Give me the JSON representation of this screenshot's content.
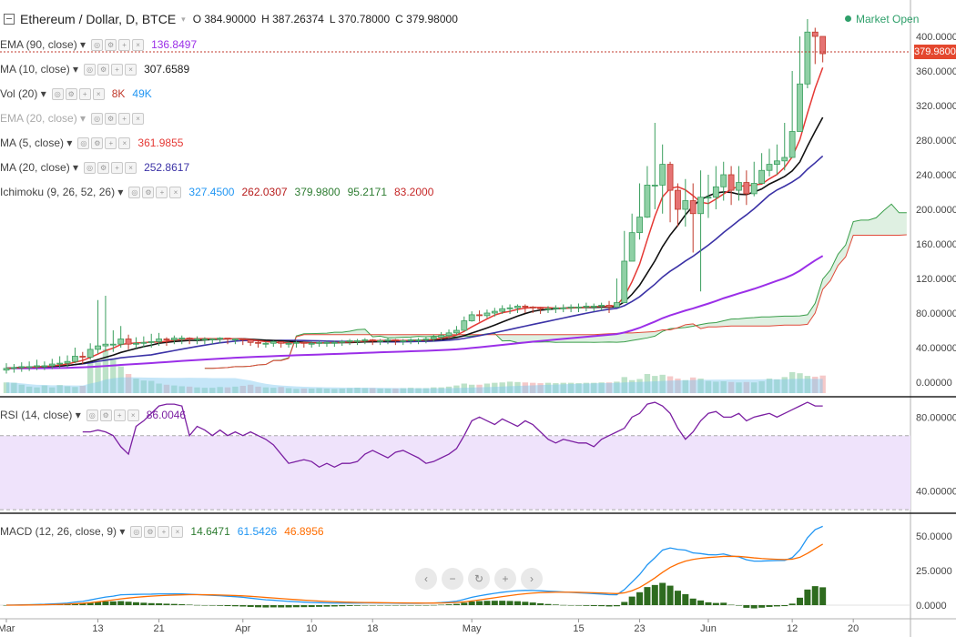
{
  "header": {
    "title": "Ethereum / Dollar, D, BTCE",
    "ohlc": [
      {
        "k": "O",
        "v": "384.90000"
      },
      {
        "k": "H",
        "v": "387.26374"
      },
      {
        "k": "L",
        "v": "370.78000"
      },
      {
        "k": "C",
        "v": "379.98000"
      }
    ],
    "market_status": "Market Open",
    "last_price": "379.98000"
  },
  "legend": [
    {
      "name": "EMA (90, close)",
      "values": [
        {
          "v": "136.8497",
          "color": "#9b2fe8"
        }
      ]
    },
    {
      "name": "MA (10, close)",
      "values": [
        {
          "v": "307.6589",
          "color": "#222222"
        }
      ]
    },
    {
      "name": "Vol (20)",
      "values": [
        {
          "v": "8K",
          "color": "#c0392b"
        },
        {
          "v": "49K",
          "color": "#2196f3"
        }
      ]
    },
    {
      "name": "EMA (20, close)",
      "values": [],
      "hidden": true
    },
    {
      "name": "MA (5, close)",
      "values": [
        {
          "v": "361.9855",
          "color": "#e53935"
        }
      ]
    },
    {
      "name": "MA (20, close)",
      "values": [
        {
          "v": "252.8617",
          "color": "#3b32a6"
        }
      ]
    },
    {
      "name": "Ichimoku (9, 26, 52, 26)",
      "values": [
        {
          "v": "327.4500",
          "color": "#2196f3"
        },
        {
          "v": "262.0307",
          "color": "#b71c1c"
        },
        {
          "v": "379.9800",
          "color": "#2e7d32"
        },
        {
          "v": "95.2171",
          "color": "#2e7d32"
        },
        {
          "v": "83.2000",
          "color": "#c62828"
        }
      ]
    }
  ],
  "rsi_legend": {
    "name": "RSI (14, close)",
    "value": "86.0046",
    "color": "#7b1fa2"
  },
  "macd_legend": {
    "name": "MACD (12, 26, close, 9)",
    "values": [
      {
        "v": "14.6471",
        "color": "#2e7d32"
      },
      {
        "v": "61.5426",
        "color": "#2196f3"
      },
      {
        "v": "46.8956",
        "color": "#ff6d00"
      }
    ]
  },
  "nav_icons": [
    "chevron-left",
    "zoom-out",
    "reset",
    "zoom-in",
    "chevron-right"
  ],
  "chart_data": {
    "type": "candlestick",
    "price_axis_ticks": [
      "400.00000",
      "360.00000",
      "320.00000",
      "280.00000",
      "240.00000",
      "200.00000",
      "160.00000",
      "120.00000",
      "80.00000",
      "40.00000",
      "0.00000"
    ],
    "rsi_axis_ticks": [
      "80.00000",
      "40.00000"
    ],
    "macd_axis_ticks": [
      "50.0000",
      "25.0000",
      "0.0000"
    ],
    "x_axis_ticks": [
      {
        "label": "Mar",
        "day": 1
      },
      {
        "label": "13",
        "day": 13
      },
      {
        "label": "21",
        "day": 21
      },
      {
        "label": "Apr",
        "day": 32
      },
      {
        "label": "10",
        "day": 41
      },
      {
        "label": "18",
        "day": 49
      },
      {
        "label": "May",
        "day": 62
      },
      {
        "label": "15",
        "day": 76
      },
      {
        "label": "23",
        "day": 84
      },
      {
        "label": "Jun",
        "day": 93
      },
      {
        "label": "12",
        "day": 104
      },
      {
        "label": "20",
        "day": 112
      }
    ],
    "close": [
      16,
      17,
      18,
      18,
      19,
      19,
      21,
      22,
      24,
      30,
      29,
      38,
      42,
      44,
      44,
      50,
      44,
      45,
      46,
      47,
      50,
      49,
      51,
      51,
      50,
      50,
      50,
      50,
      51,
      50,
      50,
      49,
      46,
      45,
      45,
      47,
      45,
      45,
      46,
      45,
      45,
      46,
      46,
      46,
      47,
      48,
      48,
      49,
      48,
      48,
      49,
      48,
      48,
      49,
      49,
      50,
      52,
      54,
      57,
      60,
      71,
      78,
      77,
      80,
      82,
      85,
      86,
      88,
      87,
      86,
      85,
      85,
      86,
      86,
      87,
      87,
      88,
      88,
      89,
      87,
      92,
      140,
      173,
      191,
      228,
      228,
      252,
      222,
      200,
      210,
      195,
      214,
      214,
      226,
      240,
      222,
      231,
      218,
      230,
      245,
      252,
      256,
      260,
      290,
      345,
      405,
      400,
      380
    ],
    "high": [
      22,
      21,
      23,
      24,
      26,
      24,
      27,
      30,
      31,
      40,
      35,
      45,
      95,
      100,
      60,
      65,
      55,
      52,
      53,
      56,
      57,
      52,
      54,
      54,
      52,
      53,
      52,
      51,
      52,
      51,
      51,
      51,
      49,
      48,
      47,
      48,
      47,
      47,
      48,
      47,
      47,
      48,
      48,
      48,
      49,
      50,
      50,
      51,
      50,
      50,
      51,
      50,
      50,
      51,
      51,
      52,
      55,
      58,
      61,
      65,
      76,
      82,
      83,
      84,
      86,
      89,
      90,
      90,
      90,
      88,
      87,
      88,
      89,
      90,
      90,
      91,
      92,
      91,
      92,
      94,
      120,
      175,
      195,
      230,
      250,
      300,
      275,
      255,
      230,
      235,
      230,
      245,
      240,
      250,
      255,
      250,
      250,
      245,
      255,
      265,
      270,
      275,
      300,
      360,
      400,
      420,
      410,
      390
    ],
    "low": [
      10,
      11,
      12,
      13,
      14,
      14,
      15,
      16,
      17,
      22,
      21,
      26,
      33,
      35,
      35,
      40,
      38,
      39,
      40,
      40,
      42,
      42,
      44,
      44,
      44,
      44,
      44,
      44,
      45,
      44,
      44,
      43,
      42,
      40,
      40,
      41,
      40,
      40,
      40,
      40,
      40,
      41,
      41,
      41,
      42,
      43,
      43,
      44,
      43,
      43,
      44,
      43,
      43,
      44,
      44,
      45,
      47,
      49,
      52,
      55,
      63,
      70,
      70,
      74,
      76,
      79,
      79,
      80,
      80,
      80,
      79,
      80,
      80,
      81,
      81,
      81,
      82,
      82,
      83,
      80,
      87,
      118,
      145,
      165,
      190,
      200,
      195,
      185,
      180,
      180,
      150,
      105,
      190,
      200,
      210,
      205,
      210,
      205,
      215,
      230,
      238,
      240,
      245,
      265,
      320,
      340,
      368,
      370
    ],
    "volume": [
      28,
      27,
      22,
      17,
      15,
      20,
      15,
      21,
      18,
      16,
      19,
      82,
      80,
      115,
      90,
      70,
      50,
      38,
      33,
      32,
      25,
      22,
      20,
      18,
      17,
      15,
      14,
      14,
      16,
      15,
      17,
      19,
      22,
      17,
      15,
      14,
      16,
      13,
      11,
      12,
      12,
      13,
      12,
      11,
      12,
      13,
      14,
      13,
      13,
      12,
      12,
      12,
      13,
      14,
      13,
      13,
      15,
      15,
      17,
      20,
      25,
      22,
      22,
      25,
      27,
      28,
      30,
      29,
      28,
      27,
      26,
      27,
      26,
      27,
      27,
      26,
      27,
      27,
      28,
      28,
      30,
      42,
      34,
      37,
      50,
      45,
      48,
      44,
      38,
      34,
      41,
      38,
      32,
      30,
      31,
      29,
      28,
      29,
      28,
      31,
      38,
      36,
      42,
      55,
      52,
      45,
      43,
      46
    ],
    "rsi": [
      72,
      72,
      73,
      72,
      70,
      64,
      60,
      75,
      78,
      82,
      86,
      87,
      87,
      86,
      70,
      75,
      73,
      70,
      73,
      70,
      72,
      70,
      72,
      70,
      68,
      65,
      60,
      55,
      56,
      57,
      56,
      53,
      55,
      53,
      55,
      55,
      56,
      60,
      62,
      60,
      58,
      61,
      62,
      60,
      58,
      55,
      56,
      58,
      60,
      63,
      70,
      78,
      80,
      78,
      76,
      79,
      77,
      75,
      78,
      76,
      72,
      68,
      66,
      68,
      67,
      66,
      66,
      64,
      68,
      70,
      72,
      74,
      80,
      82,
      87,
      88,
      86,
      82,
      74,
      68,
      72,
      78,
      82,
      83,
      80,
      80,
      82,
      78,
      80,
      81,
      82,
      80,
      82,
      84,
      86,
      88,
      86,
      86
    ]
  }
}
